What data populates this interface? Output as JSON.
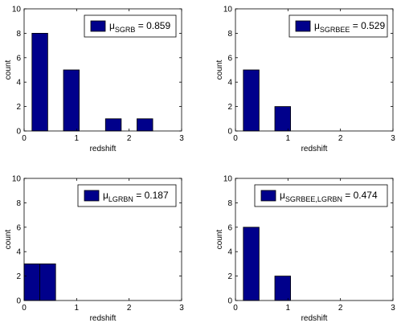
{
  "chart_data": [
    {
      "type": "bar",
      "x": [
        0.3,
        0.9,
        1.7,
        2.3
      ],
      "values": [
        8,
        5,
        1,
        1
      ],
      "bin_width": 0.3,
      "xlim": [
        0,
        3
      ],
      "ylim": [
        0,
        10
      ],
      "xticks": [
        0,
        1,
        2,
        3
      ],
      "yticks": [
        0,
        2,
        4,
        6,
        8,
        10
      ],
      "xlabel": "redshift",
      "ylabel": "count",
      "legend": {
        "mu": "μ",
        "subscript": "SGRB",
        "value": " = 0.859"
      },
      "bar_color": "#00008b",
      "grid": false,
      "legend_position": "top-right"
    },
    {
      "type": "bar",
      "x": [
        0.3,
        0.9
      ],
      "values": [
        5,
        2
      ],
      "bin_width": 0.3,
      "xlim": [
        0,
        3
      ],
      "ylim": [
        0,
        10
      ],
      "xticks": [
        0,
        1,
        2,
        3
      ],
      "yticks": [
        0,
        2,
        4,
        6,
        8,
        10
      ],
      "xlabel": "redshift",
      "ylabel": "count",
      "legend": {
        "mu": "μ",
        "subscript": "SGRBEE",
        "value": " = 0.529"
      },
      "bar_color": "#00008b",
      "grid": false,
      "legend_position": "top-right"
    },
    {
      "type": "bar",
      "x": [
        0.15,
        0.45
      ],
      "values": [
        3,
        3
      ],
      "bin_width": 0.3,
      "xlim": [
        0,
        3
      ],
      "ylim": [
        0,
        10
      ],
      "xticks": [
        0,
        1,
        2,
        3
      ],
      "yticks": [
        0,
        2,
        4,
        6,
        8,
        10
      ],
      "xlabel": "redshift",
      "ylabel": "count",
      "legend": {
        "mu": "μ",
        "subscript": "LGRBN",
        "value": " = 0.187"
      },
      "bar_color": "#00008b",
      "grid": false,
      "legend_position": "top-right"
    },
    {
      "type": "bar",
      "x": [
        0.3,
        0.9
      ],
      "values": [
        6,
        2
      ],
      "bin_width": 0.3,
      "xlim": [
        0,
        3
      ],
      "ylim": [
        0,
        10
      ],
      "xticks": [
        0,
        1,
        2,
        3
      ],
      "yticks": [
        0,
        2,
        4,
        6,
        8,
        10
      ],
      "xlabel": "redshift",
      "ylabel": "count",
      "legend": {
        "mu": "μ",
        "subscript": "SGRBEE,LGRBN",
        "value": " = 0.474"
      },
      "bar_color": "#00008b",
      "grid": false,
      "legend_position": "top-right"
    }
  ]
}
